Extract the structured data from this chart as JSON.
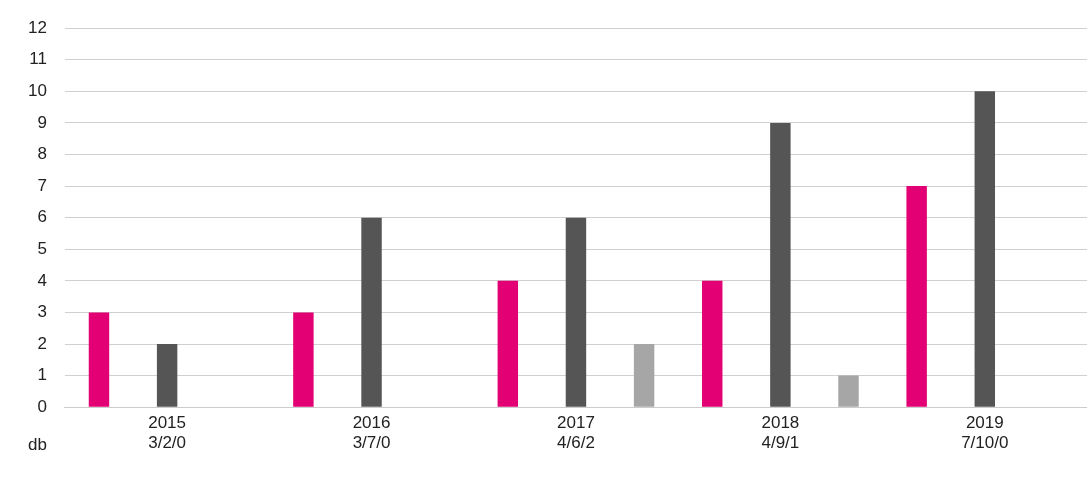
{
  "chart_data": {
    "type": "bar",
    "categories": [
      "2015\n3/2/0",
      "2016\n3/7/0",
      "2017\n4/6/2",
      "2018\n4/9/1",
      "2019\n7/10/0"
    ],
    "series": [
      {
        "color": "#e20074",
        "values": [
          3,
          3,
          4,
          4,
          7
        ]
      },
      {
        "color": "#555555",
        "values": [
          2,
          6,
          6,
          9,
          10
        ]
      },
      {
        "color": "#a6a6a6",
        "values": [
          0,
          0,
          2,
          1,
          0
        ]
      }
    ],
    "ylabel": "db",
    "ylim": [
      0,
      12
    ],
    "yticks": [
      0,
      1,
      2,
      3,
      4,
      5,
      6,
      7,
      8,
      9,
      10,
      11,
      12
    ],
    "grid": "y",
    "legend": false
  }
}
